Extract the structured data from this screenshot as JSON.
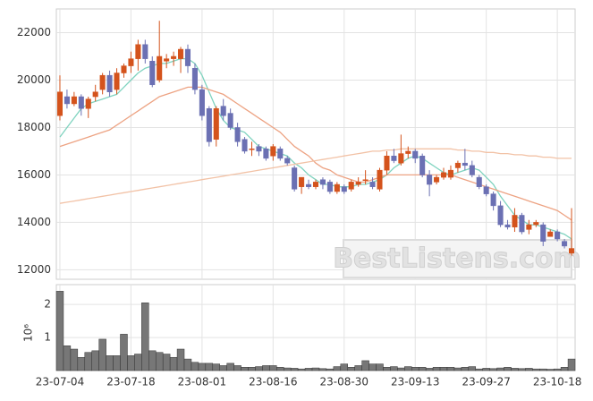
{
  "chart_data": {
    "type": "candlestick",
    "watermark": "BestListens.com",
    "categories": [
      "23-07-04",
      null,
      null,
      null,
      null,
      null,
      null,
      null,
      null,
      null,
      "23-07-18",
      null,
      null,
      null,
      null,
      null,
      null,
      null,
      null,
      null,
      "23-08-01",
      null,
      null,
      null,
      null,
      null,
      null,
      null,
      null,
      null,
      "23-08-16",
      null,
      null,
      null,
      null,
      null,
      null,
      null,
      null,
      null,
      "23-08-30",
      null,
      null,
      null,
      null,
      null,
      null,
      null,
      null,
      null,
      "23-09-13",
      null,
      null,
      null,
      null,
      null,
      null,
      null,
      null,
      null,
      "23-09-27",
      null,
      null,
      null,
      null,
      null,
      null,
      null,
      null,
      null,
      "23-10-18",
      null,
      null
    ],
    "up_color": "#d4531c",
    "down_color": "#6b70b3",
    "open": [
      18500,
      19300,
      19000,
      19300,
      18800,
      19300,
      19600,
      20200,
      19600,
      20300,
      20600,
      20900,
      21500,
      20800,
      20000,
      20800,
      20900,
      20900,
      21300,
      20500,
      19600,
      18800,
      17500,
      18900,
      18600,
      18000,
      17500,
      17100,
      17200,
      17100,
      16800,
      17100,
      16700,
      16300,
      15500,
      15600,
      15500,
      15800,
      15700,
      15300,
      15500,
      15400,
      15600,
      15800,
      15700,
      15400,
      16200,
      16800,
      16500,
      16900,
      17000,
      16800,
      16000,
      15700,
      15900,
      15900,
      16300,
      16500,
      16400,
      15900,
      15500,
      15200,
      14700,
      13900,
      13800,
      14300,
      13700,
      13900,
      13900,
      13400,
      13600,
      13200,
      12700
    ],
    "high": [
      20200,
      19600,
      19500,
      19400,
      19300,
      19800,
      20300,
      20400,
      20500,
      20700,
      21200,
      21700,
      21700,
      21000,
      22500,
      21100,
      21200,
      21400,
      21500,
      20700,
      19800,
      18900,
      18900,
      19200,
      18800,
      18200,
      17600,
      17400,
      17300,
      17200,
      17300,
      17200,
      16800,
      16400,
      15900,
      15800,
      15800,
      15900,
      15800,
      15700,
      15600,
      15800,
      15900,
      16200,
      15900,
      16300,
      17000,
      17100,
      17700,
      17200,
      17100,
      16900,
      16200,
      16000,
      16300,
      16400,
      16600,
      17100,
      16600,
      16000,
      15600,
      15300,
      14900,
      14100,
      14600,
      14400,
      14100,
      14100,
      14000,
      13700,
      13700,
      13300,
      14600
    ],
    "low": [
      18300,
      18800,
      18900,
      18500,
      18400,
      19100,
      19400,
      19300,
      19400,
      20100,
      20300,
      20400,
      20700,
      19700,
      19900,
      20500,
      20600,
      20300,
      20300,
      19400,
      18300,
      17200,
      17200,
      18300,
      17900,
      17200,
      16900,
      16800,
      16800,
      16600,
      16600,
      16600,
      16400,
      15300,
      15200,
      15400,
      15400,
      15400,
      15200,
      15200,
      15200,
      15300,
      15500,
      15600,
      15400,
      15300,
      16000,
      16500,
      16400,
      16700,
      16500,
      15900,
      15100,
      15600,
      15800,
      15800,
      16100,
      16200,
      15900,
      15400,
      15100,
      14500,
      13800,
      13700,
      13600,
      13500,
      13500,
      13800,
      13000,
      13400,
      13200,
      12900,
      12600
    ],
    "close": [
      19500,
      19000,
      19300,
      18800,
      19200,
      19500,
      20200,
      19500,
      20300,
      20600,
      20900,
      21500,
      20900,
      19800,
      21000,
      20900,
      21000,
      21300,
      20600,
      19600,
      18500,
      17400,
      18800,
      18500,
      18000,
      17400,
      17000,
      17100,
      17000,
      16700,
      17200,
      16700,
      16500,
      15400,
      15900,
      15500,
      15700,
      15600,
      15300,
      15600,
      15300,
      15700,
      15700,
      15800,
      15500,
      16200,
      16800,
      16600,
      16900,
      17000,
      16700,
      16000,
      15600,
      15900,
      16100,
      16200,
      16500,
      16400,
      16000,
      15500,
      15200,
      14700,
      13900,
      13800,
      14300,
      13600,
      13900,
      14000,
      13200,
      13600,
      13300,
      13000,
      12900
    ],
    "moving_averages": [
      {
        "color": "#7fd3bf",
        "values": [
          17600,
          18000,
          18400,
          18800,
          19000,
          19100,
          19200,
          19300,
          19400,
          19700,
          20000,
          20300,
          20500,
          20600,
          20700,
          20700,
          20800,
          20900,
          20900,
          20700,
          20200,
          19500,
          18800,
          18300,
          18000,
          17900,
          17800,
          17500,
          17200,
          17100,
          17000,
          16900,
          16800,
          16500,
          16300,
          16000,
          15800,
          15600,
          15600,
          15500,
          15500,
          15500,
          15600,
          15600,
          15700,
          15800,
          16000,
          16300,
          16500,
          16700,
          16800,
          16700,
          16500,
          16300,
          16100,
          16000,
          16100,
          16200,
          16300,
          16200,
          15900,
          15600,
          15100,
          14700,
          14300,
          14100,
          13900,
          13900,
          13800,
          13700,
          13600,
          13500,
          13300
        ]
      },
      {
        "color": "#eda383",
        "values": [
          17200,
          17300,
          17400,
          17500,
          17600,
          17700,
          17800,
          17900,
          18100,
          18300,
          18500,
          18700,
          18900,
          19100,
          19300,
          19400,
          19500,
          19600,
          19700,
          19700,
          19700,
          19600,
          19500,
          19400,
          19200,
          19000,
          18800,
          18600,
          18400,
          18200,
          18000,
          17800,
          17500,
          17200,
          17000,
          16800,
          16500,
          16300,
          16200,
          16000,
          15900,
          15800,
          15700,
          15700,
          15800,
          15900,
          16000,
          16000,
          16000,
          16000,
          16000,
          16000,
          16000,
          16000,
          16000,
          16000,
          15900,
          15800,
          15700,
          15600,
          15500,
          15400,
          15300,
          15200,
          15100,
          15000,
          14900,
          14800,
          14700,
          14600,
          14500,
          14300,
          14100
        ]
      },
      {
        "color": "#f2c2a6",
        "values": [
          14800,
          14850,
          14900,
          14950,
          15000,
          15050,
          15100,
          15150,
          15200,
          15250,
          15300,
          15350,
          15400,
          15450,
          15500,
          15550,
          15600,
          15650,
          15700,
          15750,
          15800,
          15850,
          15900,
          15950,
          16000,
          16050,
          16100,
          16150,
          16200,
          16250,
          16300,
          16350,
          16400,
          16450,
          16500,
          16550,
          16600,
          16650,
          16700,
          16750,
          16800,
          16850,
          16900,
          16950,
          17000,
          17000,
          17050,
          17050,
          17100,
          17100,
          17100,
          17100,
          17100,
          17100,
          17100,
          17100,
          17050,
          17050,
          17000,
          17000,
          16950,
          16950,
          16900,
          16900,
          16850,
          16850,
          16800,
          16800,
          16750,
          16750,
          16700,
          16700,
          16700
        ]
      }
    ],
    "ylim": [
      11600,
      23000
    ],
    "yticks": [
      12000,
      14000,
      16000,
      18000,
      20000,
      22000
    ],
    "volume": {
      "axis_label": "10⁶",
      "color": "#777777",
      "ylim": [
        0,
        2.6
      ],
      "yticks": [
        1,
        2
      ],
      "values": [
        2.4,
        0.75,
        0.65,
        0.4,
        0.55,
        0.6,
        0.95,
        0.45,
        0.45,
        1.1,
        0.45,
        0.5,
        2.05,
        0.6,
        0.55,
        0.5,
        0.4,
        0.65,
        0.35,
        0.25,
        0.22,
        0.22,
        0.2,
        0.15,
        0.22,
        0.15,
        0.1,
        0.1,
        0.12,
        0.15,
        0.15,
        0.1,
        0.08,
        0.07,
        0.05,
        0.07,
        0.08,
        0.06,
        0.05,
        0.12,
        0.2,
        0.1,
        0.15,
        0.3,
        0.2,
        0.2,
        0.1,
        0.12,
        0.08,
        0.12,
        0.1,
        0.1,
        0.07,
        0.1,
        0.1,
        0.1,
        0.08,
        0.1,
        0.12,
        0.05,
        0.07,
        0.06,
        0.08,
        0.1,
        0.07,
        0.06,
        0.07,
        0.05,
        0.05,
        0.04,
        0.05,
        0.1,
        0.35
      ]
    },
    "grid": true
  }
}
